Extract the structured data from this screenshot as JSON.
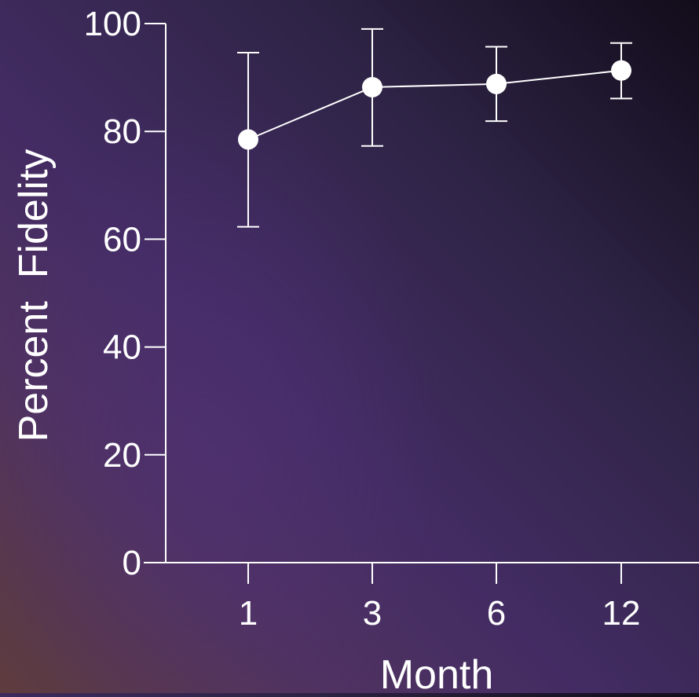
{
  "chart_data": {
    "type": "line",
    "title": "",
    "xlabel": "Month",
    "ylabel": "Percent  Fidelity",
    "categories": [
      "1",
      "3",
      "6",
      "12"
    ],
    "series": [
      {
        "values": [
          78.5,
          88.2,
          88.8,
          91.3
        ],
        "error_low": [
          62.3,
          77.3,
          81.9,
          86.1
        ],
        "error_high": [
          94.6,
          99.0,
          95.7,
          96.4
        ]
      }
    ],
    "yticks": [
      "0",
      "20",
      "40",
      "60",
      "80",
      "100"
    ],
    "ylim": [
      0,
      100
    ],
    "grid": false,
    "legend": "none",
    "colors": {
      "line": "#ffffff",
      "marker": "#ffffff",
      "axis": "#ffffff",
      "text": "#ffffff"
    }
  }
}
